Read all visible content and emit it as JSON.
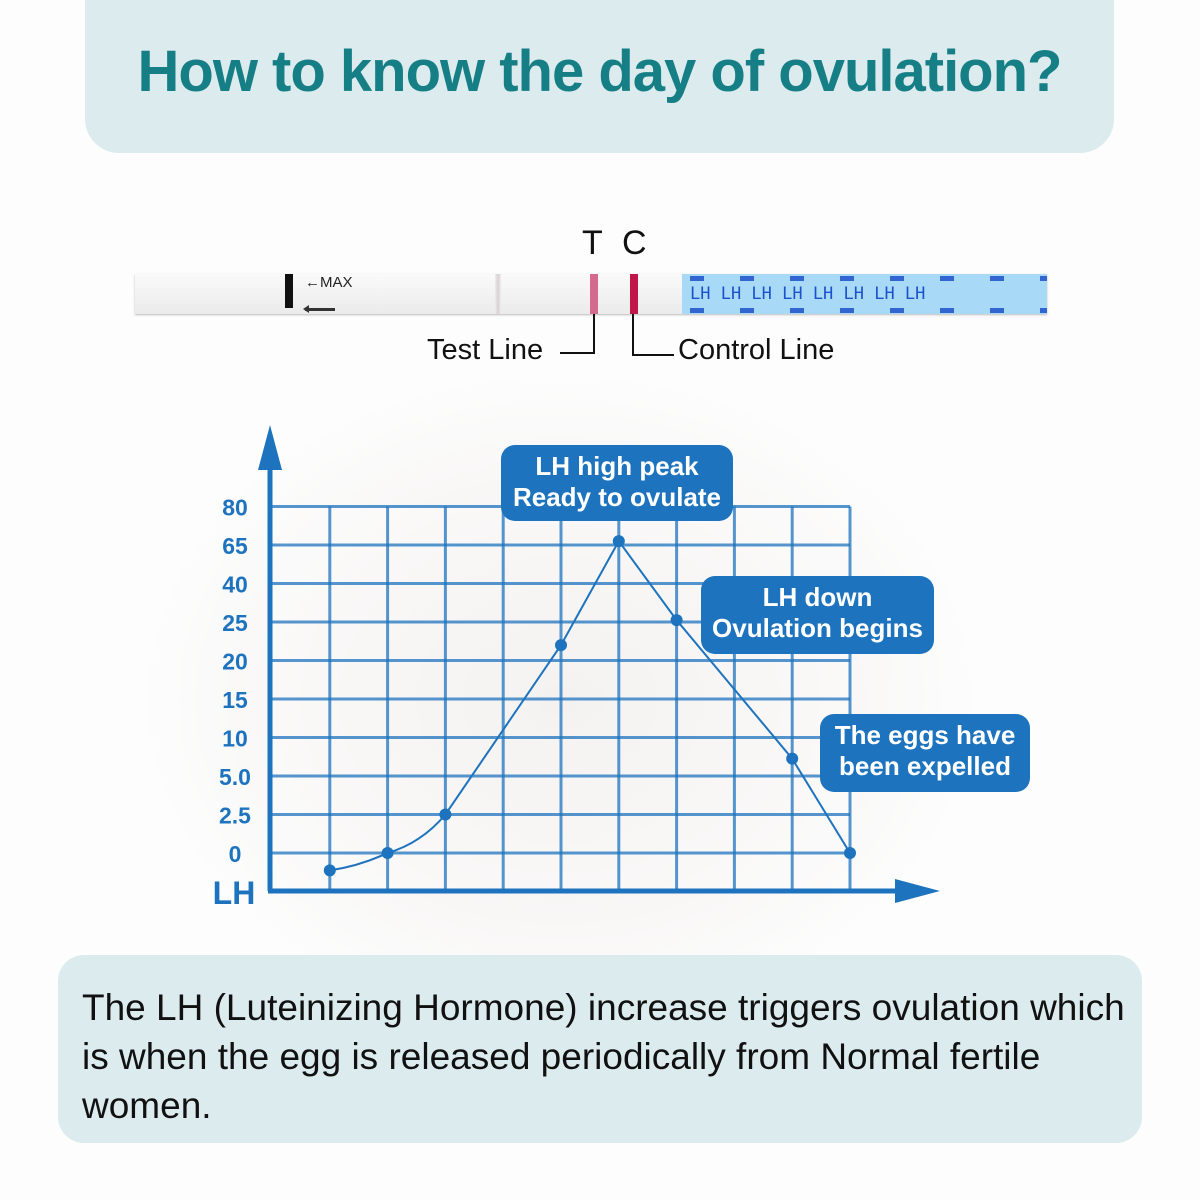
{
  "header": {
    "title": "How to know the day of ovulation?"
  },
  "strip": {
    "max_label": "←MAX",
    "t_label": "T",
    "c_label": "C",
    "test_line_label": "Test Line",
    "control_line_label": "Control Line",
    "brand_print": "LH LH LH LH LH LH LH LH",
    "colors": {
      "test_line": "#d46b8e",
      "control_line": "#c0164b",
      "print": "#1c52c9"
    }
  },
  "chart_data": {
    "type": "line",
    "ylabel": "LH",
    "xlabel": "",
    "y_ticks": [
      "0",
      "2.5",
      "5.0",
      "10",
      "15",
      "20",
      "25",
      "40",
      "65",
      "80"
    ],
    "y_scale_note": "tick-index scale (0 = '0', 9 = '80')",
    "x": [
      1,
      2,
      3,
      5,
      6,
      7,
      9,
      10
    ],
    "y_level": [
      -0.45,
      0,
      1,
      5.4,
      8.1,
      6.05,
      2.45,
      0
    ],
    "x_range": [
      0,
      10
    ],
    "y_range": [
      -1,
      9
    ],
    "grid": true,
    "annotations": [
      {
        "line1": "LH high peak",
        "line2": "Ready to ovulate"
      },
      {
        "line1": "LH down",
        "line2": "Ovulation begins"
      },
      {
        "line1": "The eggs have",
        "line2": "been expelled"
      }
    ],
    "color": "#1e73be"
  },
  "footer": {
    "text": "The LH (Luteinizing Hormone) increase triggers ovulation which is when the egg is released periodically from Normal fertile women."
  }
}
